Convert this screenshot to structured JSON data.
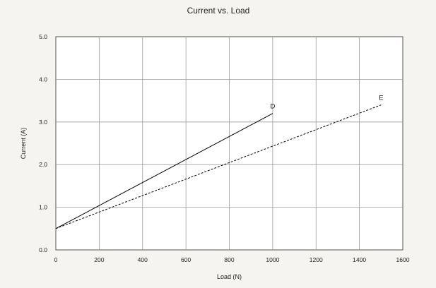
{
  "chart_data": {
    "type": "line",
    "title": "Current vs. Load",
    "xlabel": "Load (N)",
    "ylabel": "Current (A)",
    "xlim": [
      0,
      1600
    ],
    "ylim": [
      0,
      5
    ],
    "x_ticks": [
      0,
      200,
      400,
      600,
      800,
      1000,
      1200,
      1400,
      1600
    ],
    "x_tick_labels": [
      "0",
      "200",
      "400",
      "600",
      "800",
      "1000",
      "1200",
      "1400",
      "1600"
    ],
    "y_ticks": [
      0,
      1,
      2,
      3,
      4,
      5
    ],
    "y_tick_labels": [
      "0.0",
      "1.0",
      "2.0",
      "3.0",
      "4.0",
      "5.0"
    ],
    "grid": true,
    "series": [
      {
        "name": "D",
        "style": "solid",
        "color": "#000000",
        "points": [
          {
            "x": 0,
            "y": 0.5
          },
          {
            "x": 1000,
            "y": 3.2
          }
        ]
      },
      {
        "name": "E",
        "style": "dashed",
        "color": "#000000",
        "points": [
          {
            "x": 0,
            "y": 0.5
          },
          {
            "x": 1500,
            "y": 3.4
          }
        ]
      }
    ]
  }
}
